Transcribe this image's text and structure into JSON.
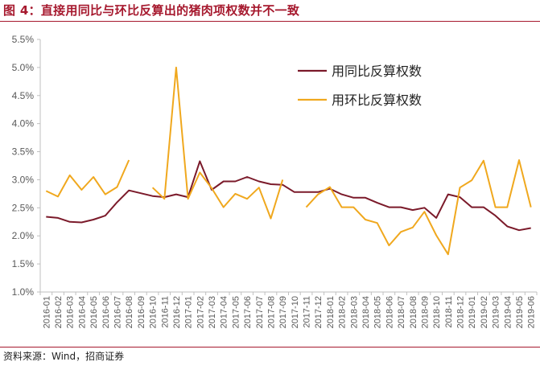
{
  "header": {
    "title": "图 4：直接用同比与环比反算出的猪肉项权数并不一致"
  },
  "footer": {
    "source": "资料来源：Wind，招商证券"
  },
  "chart_data": {
    "type": "line",
    "title": "图 4：直接用同比与环比反算出的猪肉项权数并不一致",
    "xlabel": "",
    "ylabel": "",
    "ylim": [
      1.0,
      5.5
    ],
    "ytick_labels": [
      "1.0%",
      "1.5%",
      "2.0%",
      "2.5%",
      "3.0%",
      "3.5%",
      "4.0%",
      "4.5%",
      "5.0%",
      "5.5%"
    ],
    "yticks": [
      1.0,
      1.5,
      2.0,
      2.5,
      3.0,
      3.5,
      4.0,
      4.5,
      5.0,
      5.5
    ],
    "grid": false,
    "legend_position": "top-right",
    "categories": [
      "2016-01",
      "2016-02",
      "2016-03",
      "2016-04",
      "2016-05",
      "2016-06",
      "2016-07",
      "2016-08",
      "2016-09",
      "2016-10",
      "2016-11",
      "2016-12",
      "2017-01",
      "2017-02",
      "2017-03",
      "2017-04",
      "2017-05",
      "2017-06",
      "2017-07",
      "2017-08",
      "2017-09",
      "2017-10",
      "2017-11",
      "2017-12",
      "2018-01",
      "2018-02",
      "2018-03",
      "2018-04",
      "2018-05",
      "2018-06",
      "2018-07",
      "2018-08",
      "2018-09",
      "2018-10",
      "2018-11",
      "2018-12",
      "2019-01",
      "2019-02",
      "2019-03",
      "2019-04",
      "2019-05",
      "2019-06"
    ],
    "series": [
      {
        "name": "用同比反算权数",
        "color": "#7b1a2a",
        "values": [
          2.34,
          2.32,
          2.25,
          2.24,
          2.29,
          2.36,
          2.6,
          2.81,
          2.76,
          2.71,
          2.69,
          2.74,
          2.69,
          3.33,
          2.82,
          2.97,
          2.97,
          3.05,
          2.97,
          2.92,
          2.91,
          2.78,
          2.78,
          2.78,
          2.84,
          2.74,
          2.68,
          2.68,
          2.59,
          2.51,
          2.51,
          2.46,
          2.5,
          2.32,
          2.74,
          2.69,
          2.51,
          2.51,
          2.36,
          2.17,
          2.1,
          2.14
        ]
      },
      {
        "name": "用环比反算权数",
        "color": "#f0a81e",
        "values": [
          2.8,
          2.7,
          3.08,
          2.82,
          3.05,
          2.74,
          2.87,
          3.35,
          null,
          2.86,
          2.66,
          5.0,
          2.66,
          3.13,
          2.85,
          2.51,
          2.75,
          2.66,
          2.86,
          2.31,
          3.0,
          null,
          2.51,
          2.74,
          2.87,
          2.51,
          2.51,
          2.29,
          2.23,
          1.83,
          2.07,
          2.15,
          2.43,
          2.01,
          1.67,
          2.86,
          2.99,
          3.34,
          2.51,
          2.51,
          3.35,
          2.51
        ]
      }
    ]
  }
}
